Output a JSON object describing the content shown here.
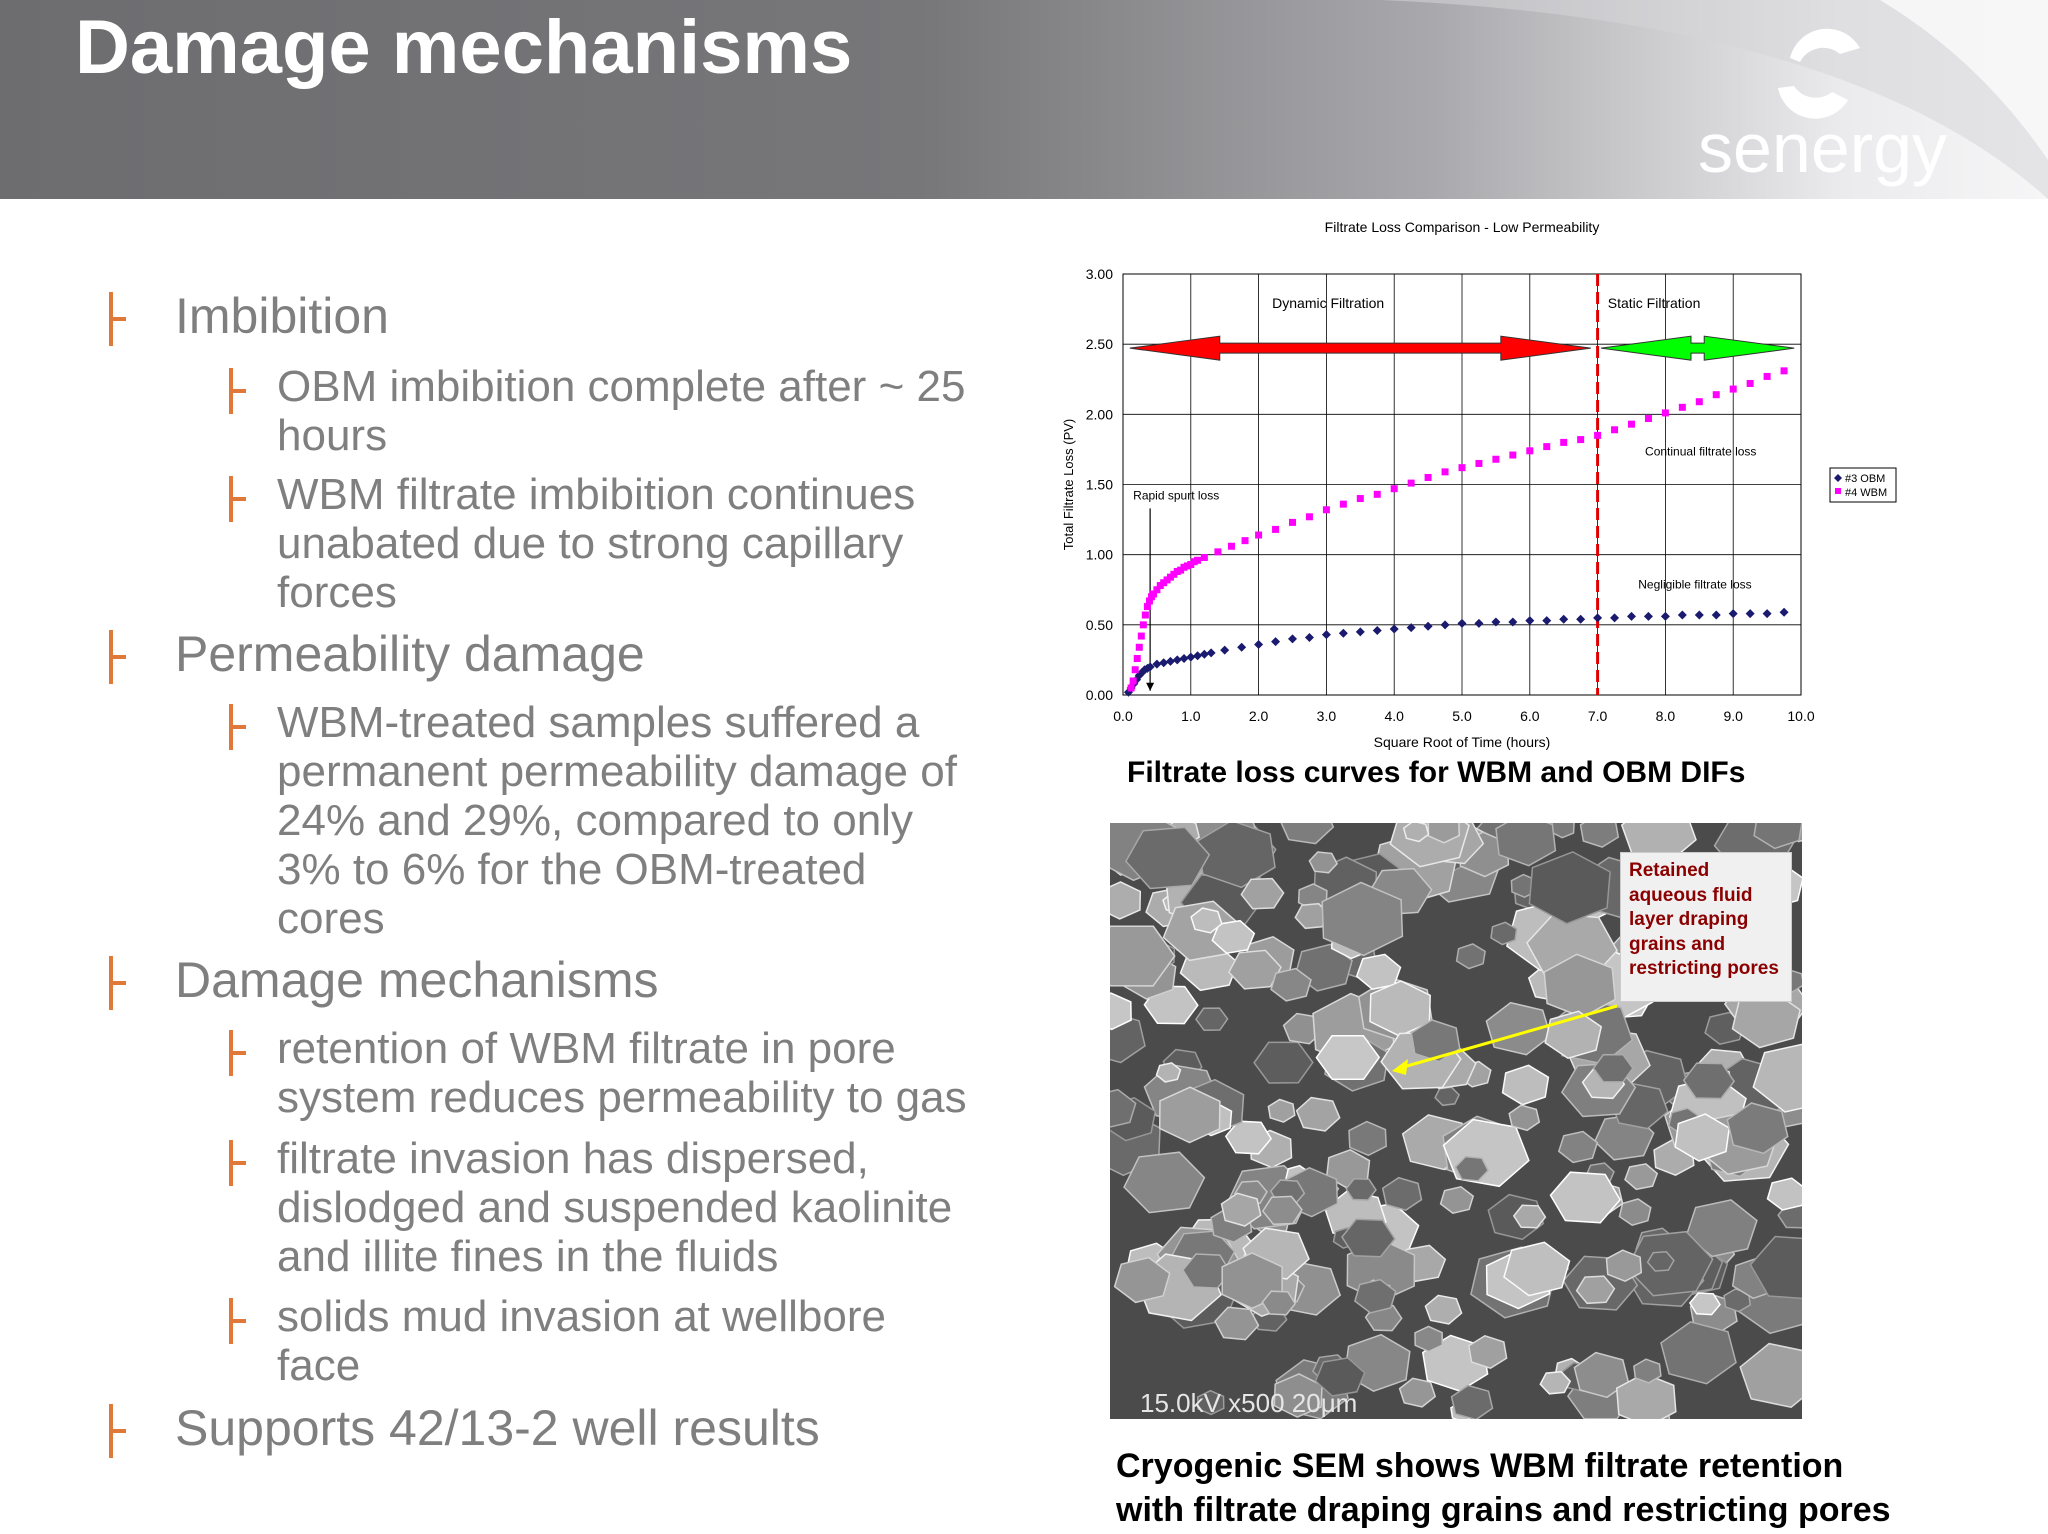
{
  "slide": {
    "title": "Damage mechanisms",
    "logo_text": "senergy"
  },
  "bullets": [
    {
      "level": 1,
      "lines": [
        "Imbibition"
      ]
    },
    {
      "level": 2,
      "lines": [
        "OBM imbibition complete after ~ 25",
        "hours"
      ]
    },
    {
      "level": 2,
      "lines": [
        "WBM filtrate imbibition continues",
        "unabated due to strong capillary",
        "forces"
      ]
    },
    {
      "level": 1,
      "lines": [
        "Permeability damage"
      ]
    },
    {
      "level": 2,
      "lines": [
        "WBM-treated samples suffered a",
        "permanent permeability damage of",
        "24% and 29%, compared to only",
        "3% to 6% for the OBM-treated",
        "cores"
      ]
    },
    {
      "level": 1,
      "lines": [
        "Damage mechanisms"
      ]
    },
    {
      "level": 2,
      "lines": [
        "retention of WBM filtrate in pore",
        "system reduces permeability to gas"
      ]
    },
    {
      "level": 2,
      "lines": [
        "filtrate invasion has dispersed,",
        "dislodged and suspended kaolinite",
        "and illite fines in the fluids"
      ]
    },
    {
      "level": 2,
      "lines": [
        "solids mud invasion at wellbore",
        "face"
      ]
    },
    {
      "level": 1,
      "lines": [
        "Supports 42/13-2 well results"
      ]
    }
  ],
  "chart_data": {
    "type": "scatter",
    "title": "Filtrate Loss Comparison - Low Permeability",
    "xlabel": "Square Root of Time (hours)",
    "ylabel": "Total Filtrate Loss (PV)",
    "xlim": [
      0,
      10
    ],
    "ylim": [
      0,
      3
    ],
    "x_ticks": [
      "0.0",
      "1.0",
      "2.0",
      "3.0",
      "4.0",
      "5.0",
      "6.0",
      "7.0",
      "8.0",
      "9.0",
      "10.0"
    ],
    "y_ticks": [
      "0.00",
      "0.50",
      "1.00",
      "1.50",
      "2.00",
      "2.50",
      "3.00"
    ],
    "grid": true,
    "legend_position": "right",
    "series": [
      {
        "name": "#3 OBM",
        "color": "#1a1a6e",
        "marker": "diamond",
        "x": [
          0.08,
          0.12,
          0.16,
          0.2,
          0.24,
          0.28,
          0.32,
          0.36,
          0.4,
          0.5,
          0.6,
          0.7,
          0.8,
          0.9,
          1.0,
          1.1,
          1.2,
          1.3,
          1.5,
          1.75,
          2.0,
          2.25,
          2.5,
          2.75,
          3.0,
          3.25,
          3.5,
          3.75,
          4.0,
          4.25,
          4.5,
          4.75,
          5.0,
          5.25,
          5.5,
          5.75,
          6.0,
          6.25,
          6.5,
          6.75,
          7.0,
          7.25,
          7.5,
          7.75,
          8.0,
          8.25,
          8.5,
          8.75,
          9.0,
          9.25,
          9.5,
          9.75
        ],
        "y": [
          0.02,
          0.05,
          0.08,
          0.11,
          0.14,
          0.16,
          0.18,
          0.19,
          0.2,
          0.22,
          0.23,
          0.24,
          0.25,
          0.26,
          0.27,
          0.28,
          0.29,
          0.3,
          0.32,
          0.34,
          0.36,
          0.38,
          0.4,
          0.41,
          0.43,
          0.44,
          0.45,
          0.46,
          0.47,
          0.48,
          0.49,
          0.5,
          0.51,
          0.51,
          0.52,
          0.52,
          0.53,
          0.53,
          0.54,
          0.54,
          0.55,
          0.55,
          0.56,
          0.56,
          0.56,
          0.57,
          0.57,
          0.57,
          0.58,
          0.58,
          0.58,
          0.59
        ]
      },
      {
        "name": "#4 WBM",
        "color": "#ff00ff",
        "marker": "square",
        "x": [
          0.12,
          0.15,
          0.18,
          0.21,
          0.24,
          0.27,
          0.3,
          0.33,
          0.36,
          0.39,
          0.42,
          0.45,
          0.5,
          0.55,
          0.6,
          0.65,
          0.7,
          0.75,
          0.8,
          0.85,
          0.9,
          0.95,
          1.0,
          1.05,
          1.1,
          1.2,
          1.4,
          1.6,
          1.8,
          2.0,
          2.25,
          2.5,
          2.75,
          3.0,
          3.25,
          3.5,
          3.75,
          4.0,
          4.25,
          4.5,
          4.75,
          5.0,
          5.25,
          5.5,
          5.75,
          6.0,
          6.25,
          6.5,
          6.75,
          7.0,
          7.25,
          7.5,
          7.75,
          8.0,
          8.25,
          8.5,
          8.75,
          9.0,
          9.25,
          9.5,
          9.75
        ],
        "y": [
          0.05,
          0.1,
          0.18,
          0.26,
          0.34,
          0.42,
          0.5,
          0.57,
          0.63,
          0.67,
          0.7,
          0.72,
          0.75,
          0.78,
          0.8,
          0.82,
          0.84,
          0.86,
          0.88,
          0.89,
          0.91,
          0.92,
          0.93,
          0.95,
          0.96,
          0.98,
          1.02,
          1.06,
          1.1,
          1.14,
          1.18,
          1.23,
          1.27,
          1.32,
          1.36,
          1.4,
          1.43,
          1.47,
          1.51,
          1.55,
          1.59,
          1.62,
          1.65,
          1.68,
          1.71,
          1.74,
          1.77,
          1.8,
          1.82,
          1.85,
          1.89,
          1.93,
          1.97,
          2.01,
          2.05,
          2.09,
          2.14,
          2.18,
          2.22,
          2.27,
          2.31
        ]
      }
    ],
    "annotations": {
      "dynamic": "Dynamic Filtration",
      "static": "Static Filtration",
      "spurt": "Rapid spurt loss",
      "continual": "Continual filtrate loss",
      "negligible": "Negligible filtrate loss"
    },
    "divider_x": 7.0,
    "dynamic_arrow_color": "#ff0000",
    "static_arrow_color": "#00ff00"
  },
  "captions": {
    "chart": "Filtrate loss curves for WBM and OBM DIFs",
    "sem_lines": [
      "Cryogenic SEM shows WBM filtrate retention",
      "with filtrate draping grains and restricting pores"
    ]
  },
  "sem": {
    "scale_text": "15.0kV  x500  20μm",
    "note_lines": [
      "Retained",
      "aqueous fluid",
      "layer draping",
      "grains and",
      "restricting pores"
    ]
  },
  "colors": {
    "bullet_marker": "#e0783a",
    "bullet_text": "#7f7f7f",
    "header": "#6d6d70",
    "note_text": "#8b0000",
    "pointer": "#ffff00"
  }
}
